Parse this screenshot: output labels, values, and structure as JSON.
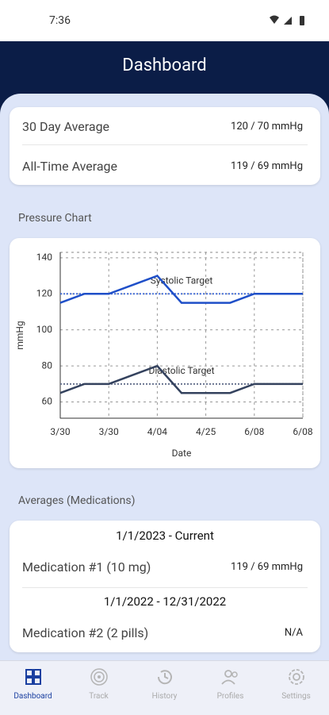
{
  "status_bar": {
    "time": "7:36"
  },
  "header": {
    "title": "Dashboard"
  },
  "averages": [
    {
      "label": "30 Day Average",
      "value": "120 / 70 mmHg"
    },
    {
      "label": "All-Time Average",
      "value": "119 / 69 mmHg"
    }
  ],
  "chart_section": "Pressure Chart",
  "chart_data": {
    "type": "line",
    "categories": [
      "3/30",
      null,
      "3/30",
      null,
      "4/04",
      null,
      "4/25",
      null,
      "6/08",
      null,
      "6/08"
    ],
    "series": [
      {
        "color": "#1f4fc8",
        "values": [
          115,
          120,
          120,
          125,
          130,
          115,
          115,
          115,
          120,
          120,
          120
        ]
      },
      {
        "color": "#34425e",
        "values": [
          65,
          70,
          70,
          75,
          80,
          65,
          65,
          65,
          70,
          70,
          70
        ]
      }
    ],
    "targets": [
      {
        "label": "Systolic Target",
        "value": 120,
        "color": "#4a72d8"
      },
      {
        "label": "Diastolic Target",
        "value": 70,
        "color": "#6a7590"
      }
    ],
    "x_label": "Date",
    "y_label": "mmHg",
    "ylim": [
      51,
      143
    ],
    "yticks": [
      60,
      80,
      100,
      120,
      140
    ],
    "grid": true
  },
  "medications_section": "Averages (Medications)",
  "medications": [
    {
      "period": "1/1/2023 - Current",
      "name": "Medication #1 (10 mg)",
      "value": "119 / 69 mmHg"
    },
    {
      "period": "1/1/2022 - 12/31/2022",
      "name": "Medication #2 (2 pills)",
      "value": "N/A"
    }
  ],
  "nav": {
    "items": [
      "Dashboard",
      "Track",
      "History",
      "Profiles",
      "Settings"
    ],
    "active": 0
  }
}
